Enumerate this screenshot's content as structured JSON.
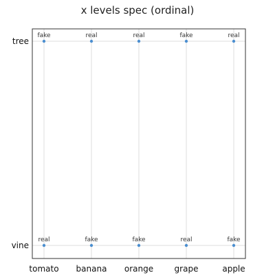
{
  "chart_data": {
    "type": "scatter",
    "title": "x levels spec (ordinal)",
    "xlabel": "",
    "ylabel": "",
    "x_categories": [
      "tomato",
      "banana",
      "orange",
      "grape",
      "apple"
    ],
    "y_categories": [
      "vine",
      "tree"
    ],
    "grid": true,
    "legend": "none",
    "point_color": "#4c8fd0",
    "points": [
      {
        "x": "tomato",
        "y": "tree",
        "label": "fake"
      },
      {
        "x": "banana",
        "y": "tree",
        "label": "real"
      },
      {
        "x": "orange",
        "y": "tree",
        "label": "real"
      },
      {
        "x": "grape",
        "y": "tree",
        "label": "fake"
      },
      {
        "x": "apple",
        "y": "tree",
        "label": "real"
      },
      {
        "x": "tomato",
        "y": "vine",
        "label": "real"
      },
      {
        "x": "banana",
        "y": "vine",
        "label": "fake"
      },
      {
        "x": "orange",
        "y": "vine",
        "label": "fake"
      },
      {
        "x": "grape",
        "y": "vine",
        "label": "real"
      },
      {
        "x": "apple",
        "y": "vine",
        "label": "fake"
      }
    ]
  }
}
